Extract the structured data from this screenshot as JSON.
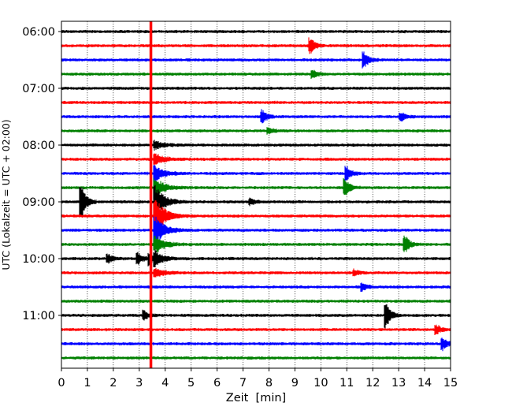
{
  "chart_data": {
    "type": "line",
    "chart_kind": "helicorder (seismogram drum plot)",
    "xlabel": "Zeit  [min]",
    "ylabel": "UTC (Lokalzeit = UTC + 02:00)",
    "xlim": [
      0,
      15
    ],
    "x_ticks": [
      "0",
      "1",
      "2",
      "3",
      "4",
      "5",
      "6",
      "7",
      "8",
      "9",
      "10",
      "11",
      "12",
      "13",
      "14",
      "15"
    ],
    "y_ticks": [
      "06:00",
      "07:00",
      "08:00",
      "09:00",
      "10:00",
      "11:00"
    ],
    "row_interval_min": 15,
    "rows": [
      {
        "start": "06:00",
        "color": "#000000"
      },
      {
        "start": "06:15",
        "color": "#ff0000"
      },
      {
        "start": "06:30",
        "color": "#0000ff"
      },
      {
        "start": "06:45",
        "color": "#008000"
      },
      {
        "start": "07:00",
        "color": "#000000"
      },
      {
        "start": "07:15",
        "color": "#ff0000"
      },
      {
        "start": "07:30",
        "color": "#0000ff"
      },
      {
        "start": "07:45",
        "color": "#008000"
      },
      {
        "start": "08:00",
        "color": "#000000"
      },
      {
        "start": "08:15",
        "color": "#ff0000"
      },
      {
        "start": "08:30",
        "color": "#0000ff"
      },
      {
        "start": "08:45",
        "color": "#008000"
      },
      {
        "start": "09:00",
        "color": "#000000"
      },
      {
        "start": "09:15",
        "color": "#ff0000"
      },
      {
        "start": "09:30",
        "color": "#0000ff"
      },
      {
        "start": "09:45",
        "color": "#008000"
      },
      {
        "start": "10:00",
        "color": "#000000"
      },
      {
        "start": "10:15",
        "color": "#ff0000"
      },
      {
        "start": "10:30",
        "color": "#0000ff"
      },
      {
        "start": "10:45",
        "color": "#008000"
      },
      {
        "start": "11:00",
        "color": "#000000"
      },
      {
        "start": "11:15",
        "color": "#ff0000"
      },
      {
        "start": "11:30",
        "color": "#0000ff"
      },
      {
        "start": "11:45",
        "color": "#008000"
      }
    ],
    "spikes": [
      {
        "row": 1,
        "x": 9.6,
        "amp": 0.5
      },
      {
        "row": 2,
        "x": 11.65,
        "amp": 0.6
      },
      {
        "row": 3,
        "x": 9.7,
        "amp": 0.25
      },
      {
        "row": 6,
        "x": 7.75,
        "amp": 0.45
      },
      {
        "row": 6,
        "x": 13.1,
        "amp": 0.3
      },
      {
        "row": 7,
        "x": 8.0,
        "amp": 0.2
      },
      {
        "row": 10,
        "x": 11.0,
        "amp": 0.5
      },
      {
        "row": 11,
        "x": 10.95,
        "amp": 0.55
      },
      {
        "row": 12,
        "x": 0.75,
        "amp": 1.3
      },
      {
        "row": 12,
        "x": 7.3,
        "amp": 0.2
      },
      {
        "row": 15,
        "x": 13.25,
        "amp": 0.6
      },
      {
        "row": 16,
        "x": 1.8,
        "amp": 0.3
      },
      {
        "row": 16,
        "x": 2.95,
        "amp": 0.4
      },
      {
        "row": 16,
        "x": 3.4,
        "amp": 0.4
      },
      {
        "row": 17,
        "x": 11.3,
        "amp": 0.2
      },
      {
        "row": 18,
        "x": 11.6,
        "amp": 0.25
      },
      {
        "row": 20,
        "x": 3.2,
        "amp": 0.3
      },
      {
        "row": 20,
        "x": 12.5,
        "amp": 1.0
      },
      {
        "row": 21,
        "x": 14.45,
        "amp": 0.35
      },
      {
        "row": 22,
        "x": 14.7,
        "amp": 0.4
      }
    ],
    "main_event": {
      "x": 3.6,
      "marker_color": "#ff0000",
      "peak_row": 13,
      "rows": [
        8,
        9,
        10,
        11,
        12,
        13,
        14,
        15,
        16,
        17
      ],
      "row_amplitudes": [
        0.6,
        0.9,
        1.2,
        1.6,
        2.6,
        3.2,
        2.4,
        1.4,
        1.0,
        0.7
      ]
    },
    "grid": true
  }
}
